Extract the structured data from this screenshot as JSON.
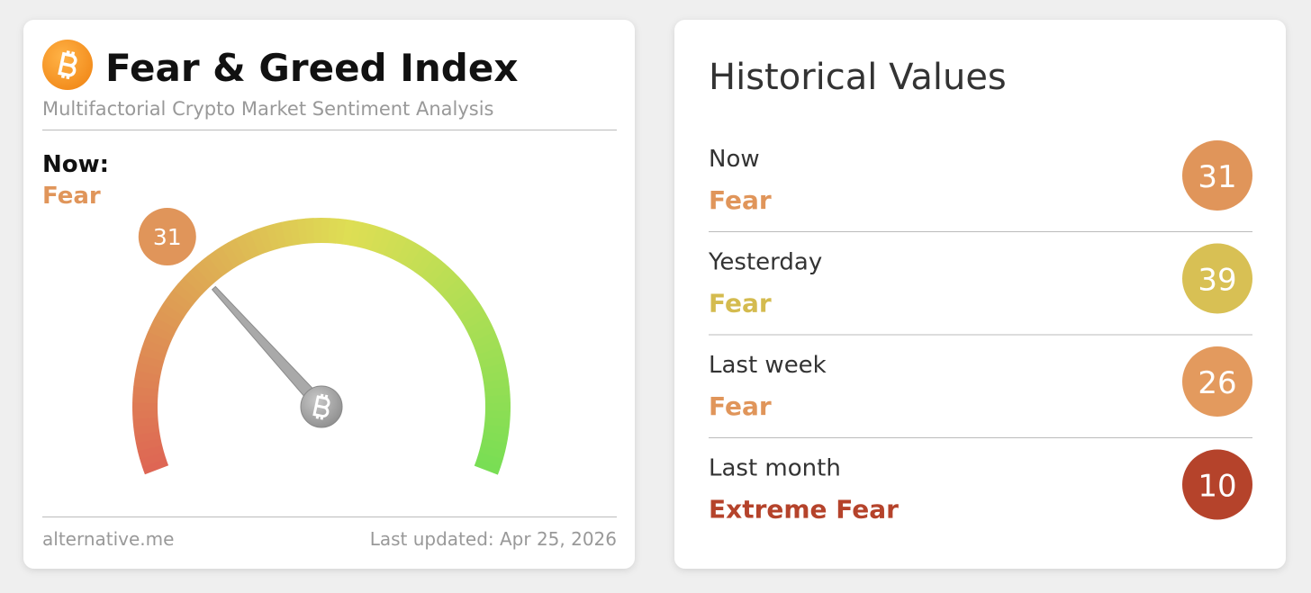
{
  "fear_greed": {
    "title": "Fear & Greed Index",
    "subtitle": "Multifactorial Crypto Market Sentiment Analysis",
    "now_label": "Now:",
    "now_classification": "Fear",
    "now_color": "#e0955a",
    "gauge": {
      "value": 31,
      "range": [
        0,
        100
      ]
    },
    "source": "alternative.me",
    "updated": "Last updated: Apr 25, 2026"
  },
  "historical": {
    "title": "Historical Values",
    "rows": [
      {
        "label": "Now",
        "classification": "Fear",
        "value": 31,
        "color": "#e0955a",
        "text_color": "#e0955a"
      },
      {
        "label": "Yesterday",
        "classification": "Fear",
        "value": 39,
        "color": "#d8c054",
        "text_color": "#d4bb4f"
      },
      {
        "label": "Last week",
        "classification": "Fear",
        "value": 26,
        "color": "#e39a5e",
        "text_color": "#e0955a"
      },
      {
        "label": "Last month",
        "classification": "Extreme Fear",
        "value": 10,
        "color": "#b5432b",
        "text_color": "#b5432b"
      }
    ]
  }
}
